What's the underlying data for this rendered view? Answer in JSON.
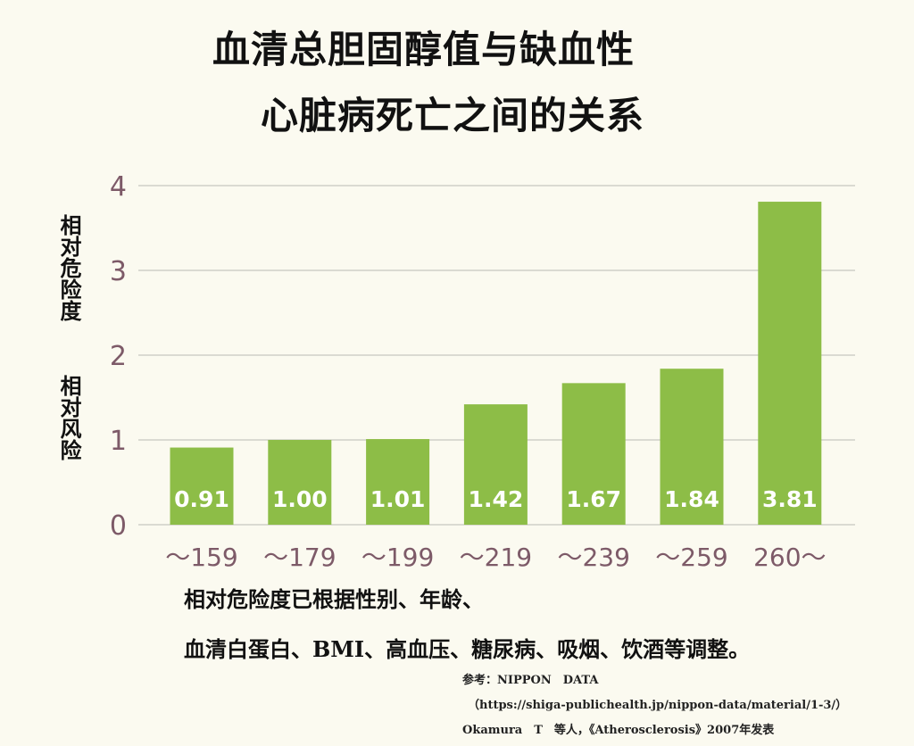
{
  "title_line1": "血清总胆固醇值与缺血性",
  "title_line2": "心脏病死亡之间的关系",
  "ylabel_line1": "相对危险度",
  "ylabel_line2": "相对风险",
  "note_line1": "相对危险度已根据性别、年龄、",
  "note_line2": "血清白蛋白、BMI、高血压、糖尿病、吸烟、饮酒等调整。",
  "ref_line1": "参考：NIPPON　DATA",
  "ref_line2": "（https://shiga-publichealth.jp/nippon-data/material/1-3/）",
  "ref_line3": "Okamura　T　等人，《Atherosclerosis》2007年发表",
  "colors": {
    "bar": "#8dbd47",
    "bar_label": "#ffffff",
    "axis_text": "#7d5a68",
    "grid": "#d0cfc8",
    "background": "#fbfaf0"
  },
  "chart_data": {
    "type": "bar",
    "title": "血清总胆固醇值与缺血性心脏病死亡之间的关系",
    "ylabel": "相对危险度　相对风险",
    "xlabel": "",
    "categories": [
      "～159",
      "～179",
      "～199",
      "～219",
      "～239",
      "～259",
      "260～"
    ],
    "values": [
      0.91,
      1.0,
      1.01,
      1.42,
      1.67,
      1.84,
      3.81
    ],
    "value_labels": [
      "0.91",
      "1.00",
      "1.01",
      "1.42",
      "1.67",
      "1.84",
      "3.81"
    ],
    "yticks": [
      "0",
      "1",
      "2",
      "3",
      "4"
    ],
    "ylim": [
      0,
      4
    ],
    "grid": true,
    "legend": "none"
  }
}
